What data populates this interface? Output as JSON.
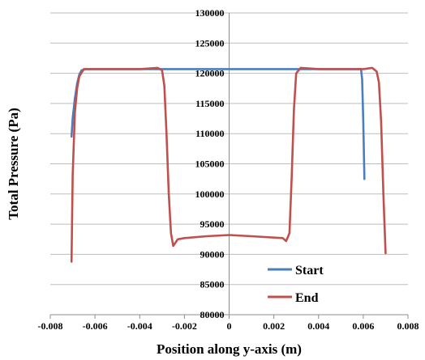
{
  "chart_data": {
    "type": "line",
    "title": "",
    "xlabel": "Position along y-axis (m)",
    "ylabel": "Total Pressure (Pa)",
    "xlim": [
      -0.008,
      0.008
    ],
    "ylim": [
      80000,
      130000
    ],
    "x_ticks": [
      -0.008,
      -0.006,
      -0.004,
      -0.002,
      0,
      0.002,
      0.004,
      0.006,
      0.008
    ],
    "x_tick_labels": [
      "-0.008",
      "-0.006",
      "-0.004",
      "-0.002",
      "0",
      "0.002",
      "0.004",
      "0.006",
      "0.008"
    ],
    "y_ticks": [
      80000,
      85000,
      90000,
      95000,
      100000,
      105000,
      110000,
      115000,
      120000,
      125000,
      130000
    ],
    "y_tick_labels": [
      "80000",
      "85000",
      "90000",
      "95000",
      "100000",
      "105000",
      "110000",
      "115000",
      "120000",
      "125000",
      "130000"
    ],
    "grid": "horizontal",
    "legend_position": "bottom-right",
    "series": [
      {
        "name": "Start",
        "color": "#4a7ebf",
        "points": [
          [
            -0.00705,
            109500
          ],
          [
            -0.007,
            112500
          ],
          [
            -0.0069,
            115800
          ],
          [
            -0.0068,
            118300
          ],
          [
            -0.0067,
            119800
          ],
          [
            -0.0066,
            120500
          ],
          [
            -0.0064,
            120700
          ],
          [
            -0.006,
            120700
          ],
          [
            -0.004,
            120700
          ],
          [
            -0.002,
            120700
          ],
          [
            0,
            120700
          ],
          [
            0.002,
            120700
          ],
          [
            0.004,
            120700
          ],
          [
            0.0059,
            120700
          ],
          [
            0.00595,
            119000
          ],
          [
            0.006,
            112000
          ],
          [
            0.00605,
            102500
          ]
        ]
      },
      {
        "name": "End",
        "color": "#c0504d",
        "points": [
          [
            -0.00705,
            88800
          ],
          [
            -0.007,
            103000
          ],
          [
            -0.0069,
            113500
          ],
          [
            -0.0068,
            117500
          ],
          [
            -0.0067,
            119500
          ],
          [
            -0.0065,
            120700
          ],
          [
            -0.006,
            120700
          ],
          [
            -0.004,
            120700
          ],
          [
            -0.0032,
            120900
          ],
          [
            -0.003,
            120500
          ],
          [
            -0.0029,
            118000
          ],
          [
            -0.0028,
            110000
          ],
          [
            -0.0027,
            100000
          ],
          [
            -0.0026,
            93500
          ],
          [
            -0.0025,
            91400
          ],
          [
            -0.0023,
            92500
          ],
          [
            -0.002,
            92700
          ],
          [
            -0.001,
            93000
          ],
          [
            0,
            93200
          ],
          [
            0.001,
            93000
          ],
          [
            0.0024,
            92700
          ],
          [
            0.00255,
            92200
          ],
          [
            0.0027,
            93500
          ],
          [
            0.0028,
            103000
          ],
          [
            0.0029,
            114000
          ],
          [
            0.003,
            120000
          ],
          [
            0.0032,
            120900
          ],
          [
            0.004,
            120700
          ],
          [
            0.006,
            120700
          ],
          [
            0.0064,
            120900
          ],
          [
            0.0066,
            120300
          ],
          [
            0.0067,
            118500
          ],
          [
            0.0068,
            112000
          ],
          [
            0.0069,
            100000
          ],
          [
            0.007,
            90200
          ]
        ]
      }
    ]
  }
}
